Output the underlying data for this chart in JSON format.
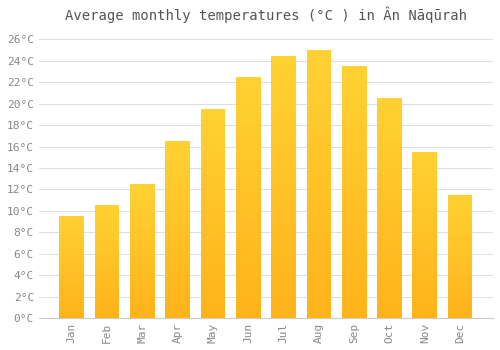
{
  "title": "Average monthly temperatures (°C ) in Ân Nāqūrah",
  "months": [
    "Jan",
    "Feb",
    "Mar",
    "Apr",
    "May",
    "Jun",
    "Jul",
    "Aug",
    "Sep",
    "Oct",
    "Nov",
    "Dec"
  ],
  "values": [
    9.5,
    10.5,
    12.5,
    16.5,
    19.5,
    22.5,
    24.5,
    25.0,
    23.5,
    20.5,
    15.5,
    11.5
  ],
  "bar_color_bottom": "#FFB300",
  "bar_color_top": "#FFCC00",
  "ylim": [
    0,
    27
  ],
  "yticks": [
    0,
    2,
    4,
    6,
    8,
    10,
    12,
    14,
    16,
    18,
    20,
    22,
    24,
    26
  ],
  "ytick_labels": [
    "0°C",
    "2°C",
    "4°C",
    "6°C",
    "8°C",
    "10°C",
    "12°C",
    "14°C",
    "16°C",
    "18°C",
    "20°C",
    "22°C",
    "24°C",
    "26°C"
  ],
  "background_color": "#ffffff",
  "grid_color": "#dddddd",
  "title_fontsize": 10,
  "tick_fontsize": 8,
  "title_color": "#555555",
  "tick_color": "#888888"
}
